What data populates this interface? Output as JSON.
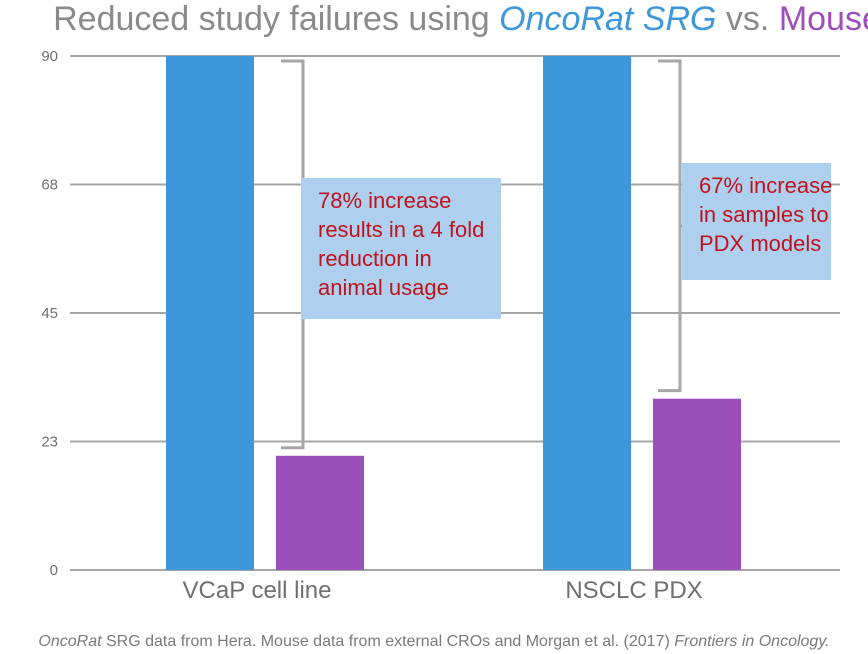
{
  "chart_data": {
    "type": "bar",
    "title": {
      "prefix": "Reduced study failures using ",
      "highlight1": "OncoRat SRG",
      "middle": " vs. ",
      "highlight2": "Mouse"
    },
    "categories": [
      "VCaP cell line",
      "NSCLC PDX"
    ],
    "series": [
      {
        "name": "OncoRat SRG",
        "color": "#3d97da",
        "values": [
          90,
          90
        ]
      },
      {
        "name": "Mouse",
        "color": "#9b4fbb",
        "values": [
          20,
          30
        ]
      }
    ],
    "yticks": [
      "0",
      "23",
      "45",
      "68",
      "90"
    ],
    "ytick_values": [
      0,
      22.5,
      45,
      67.5,
      90
    ],
    "ylim": [
      0,
      90
    ],
    "grid": true,
    "xlabel": "",
    "ylabel": "",
    "annotations": [
      {
        "category": "VCaP cell line",
        "lines": [
          "78% increase",
          "results in a 4 fold",
          "reduction in",
          "animal usage"
        ]
      },
      {
        "category": "NSCLC PDX",
        "lines": [
          "67% increase",
          "in samples to",
          "PDX models"
        ]
      }
    ],
    "source": {
      "italic1": "OncoRat",
      "text1": " SRG data from Hera. Mouse data from external CROs and Morgan et al. (2017) ",
      "italic2": "Frontiers in Oncology."
    }
  },
  "colors": {
    "oncorat": "#3d97da",
    "mouse": "#9b4fbb",
    "annotation_box": "#aed0ee",
    "annotation_text": "#c0121c",
    "grid": "#a6a6a6",
    "bracket": "#a6a6a6"
  }
}
